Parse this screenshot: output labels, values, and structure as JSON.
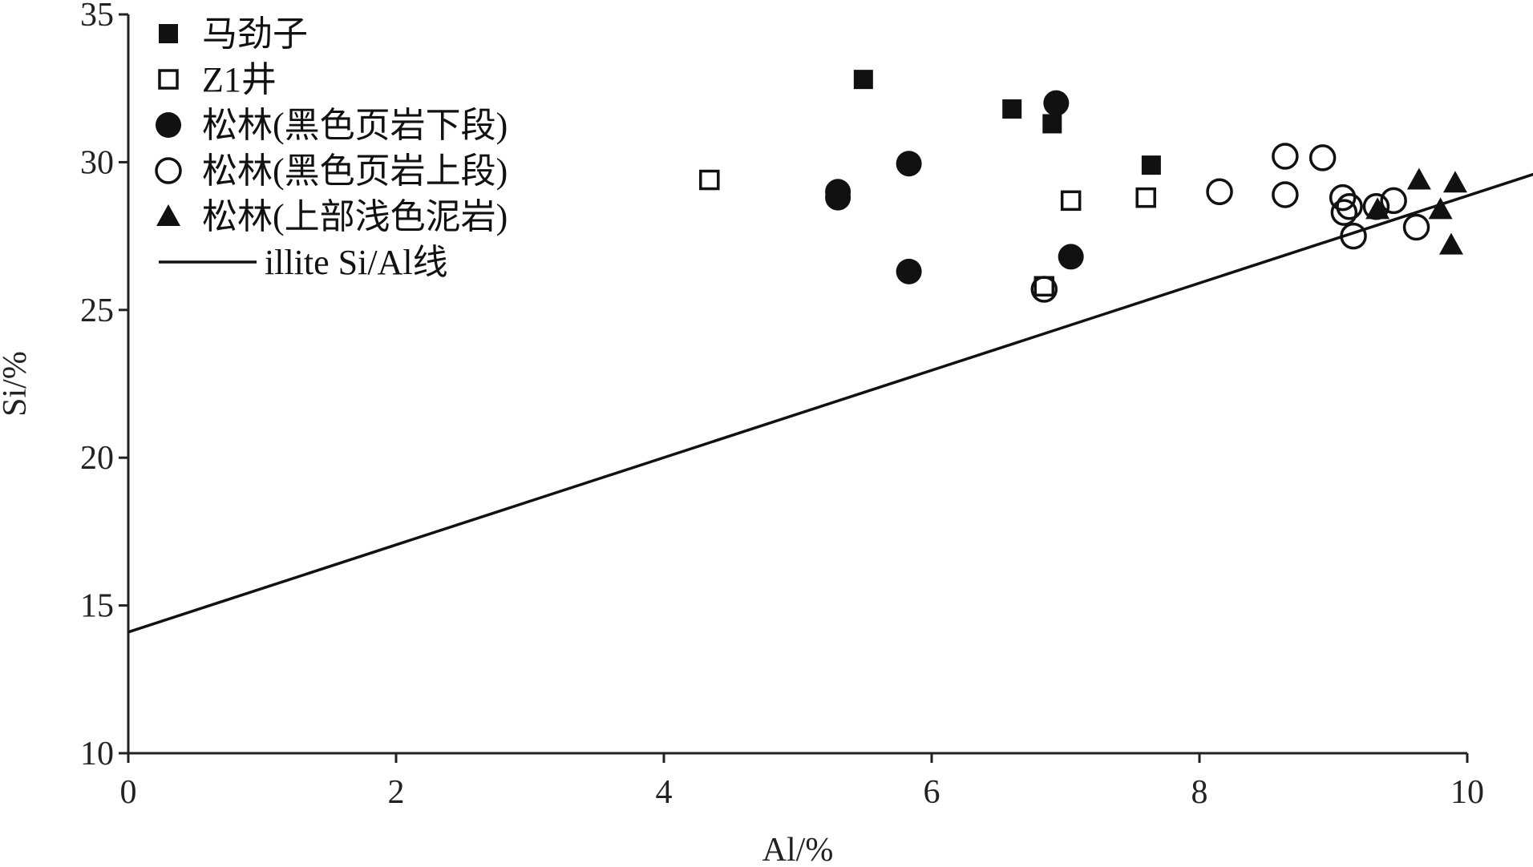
{
  "chart_data": {
    "type": "scatter",
    "xlabel": "Al/%",
    "ylabel": "Si/%",
    "xlim": [
      0,
      10
    ],
    "ylim": [
      10,
      35
    ],
    "xticks": [
      "0",
      "2",
      "4",
      "6",
      "8",
      "10"
    ],
    "yticks": [
      "10",
      "15",
      "20",
      "25",
      "30",
      "35"
    ],
    "legend_position": "top-left",
    "series": [
      {
        "name": "马劲子",
        "marker": "square-filled",
        "color": "#111111",
        "points": [
          [
            5.49,
            32.8
          ],
          [
            6.6,
            31.8
          ],
          [
            6.9,
            31.3
          ],
          [
            7.64,
            29.9
          ]
        ]
      },
      {
        "name": "Z1井",
        "marker": "square-open",
        "color": "#111111",
        "points": [
          [
            4.34,
            29.4
          ],
          [
            6.84,
            25.8
          ],
          [
            7.04,
            28.7
          ],
          [
            7.6,
            28.8
          ]
        ]
      },
      {
        "name": "松林(黑色页岩下段)",
        "marker": "circle-filled",
        "color": "#111111",
        "points": [
          [
            5.3,
            29.0
          ],
          [
            5.3,
            28.8
          ],
          [
            5.83,
            29.95
          ],
          [
            5.83,
            26.3
          ],
          [
            6.93,
            32.0
          ],
          [
            7.04,
            26.8
          ]
        ]
      },
      {
        "name": "松林(黑色页岩上段)",
        "marker": "circle-open",
        "color": "#111111",
        "points": [
          [
            6.84,
            25.7
          ],
          [
            8.15,
            29.0
          ],
          [
            8.64,
            30.2
          ],
          [
            8.64,
            28.9
          ],
          [
            8.92,
            30.15
          ],
          [
            9.07,
            28.8
          ],
          [
            9.08,
            28.3
          ],
          [
            9.12,
            28.5
          ],
          [
            9.15,
            27.5
          ],
          [
            9.32,
            28.5
          ],
          [
            9.45,
            28.7
          ],
          [
            9.62,
            27.8
          ]
        ]
      },
      {
        "name": "松林(上部浅色泥岩)",
        "marker": "triangle-filled",
        "color": "#111111",
        "points": [
          [
            9.33,
            28.4
          ],
          [
            9.64,
            29.4
          ],
          [
            9.8,
            28.4
          ],
          [
            9.88,
            27.2
          ],
          [
            9.91,
            29.3
          ]
        ]
      }
    ],
    "reference_line": {
      "name": "illite Si/Al线",
      "color": "#111111",
      "x": [
        0,
        10.5
      ],
      "y": [
        14.1,
        29.6
      ]
    }
  }
}
